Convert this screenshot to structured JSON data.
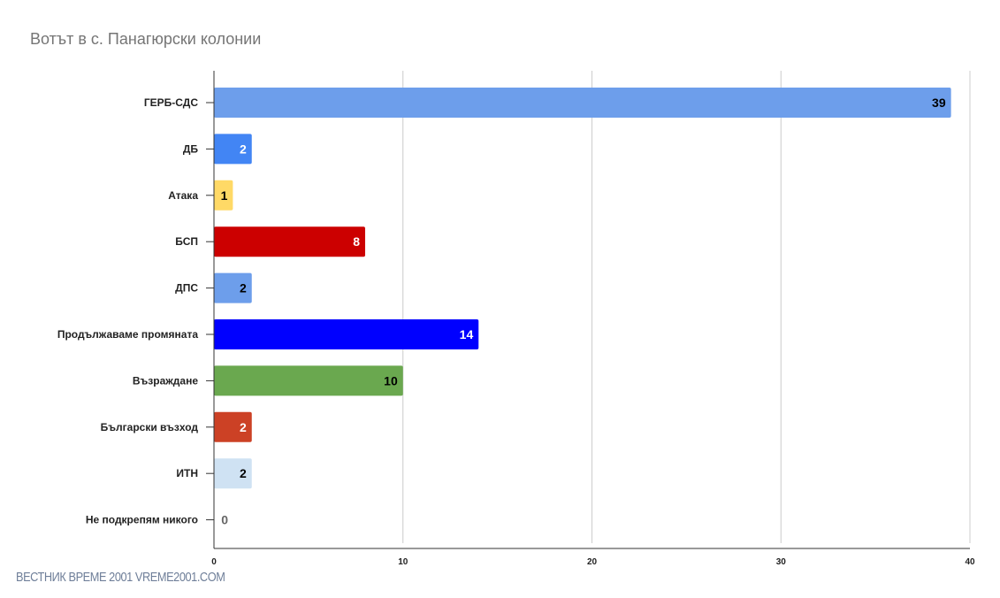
{
  "watermark": "ВЕСТНИК ВРЕМЕ 2001  VREME2001.COM",
  "chart_data": {
    "type": "bar",
    "orientation": "horizontal",
    "title": "Вотът в с. Панагюрски колонии",
    "xlabel": "",
    "ylabel": "",
    "xlim": [
      0,
      40
    ],
    "xticks": [
      0,
      10,
      20,
      30,
      40
    ],
    "grid": true,
    "categories": [
      "ГЕРБ-СДС",
      "ДБ",
      "Атака",
      "БСП",
      "ДПС",
      "Продължаваме промяната",
      "Възраждане",
      "Български възход",
      "ИТН",
      "Не подкрепям никого"
    ],
    "values": [
      39,
      2,
      1,
      8,
      2,
      14,
      10,
      2,
      2,
      0
    ],
    "colors": [
      "#6d9eeb",
      "#4285f4",
      "#ffd966",
      "#cc0000",
      "#6d9eeb",
      "#0000ff",
      "#6aa84f",
      "#cc4125",
      "#cfe2f3",
      "#999999"
    ],
    "label_colors": [
      "#000000",
      "#ffffff",
      "#000000",
      "#ffffff",
      "#000000",
      "#ffffff",
      "#000000",
      "#ffffff",
      "#000000",
      "#666666"
    ]
  }
}
